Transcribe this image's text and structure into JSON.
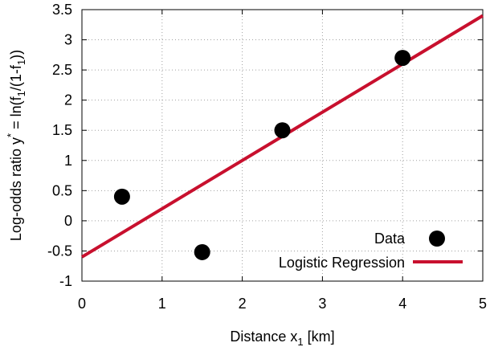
{
  "chart_data": {
    "type": "scatter",
    "title": "",
    "xlabel": "Distance x",
    "xlabel_sub": "1",
    "xlabel_tail": " [km]",
    "ylabel_parts": {
      "prefix": "Log-odds ratio y",
      "sup": "*",
      "mid1": " = ln(f",
      "sub1": "1",
      "mid2": "/(1-f",
      "sub2": "1",
      "suffix": "))"
    },
    "xlim": [
      0,
      5
    ],
    "ylim": [
      -1,
      3.5
    ],
    "xticks": [
      "0",
      "1",
      "2",
      "3",
      "4",
      "5"
    ],
    "yticks": [
      "-1",
      "-0.5",
      "0",
      "0.5",
      "1",
      "1.5",
      "2",
      "2.5",
      "3",
      "3.5"
    ],
    "grid": true,
    "legend_position": "bottom-right",
    "series": [
      {
        "name": "Data",
        "kind": "points",
        "color": "#000000",
        "x": [
          0.5,
          1.5,
          2.5,
          4.0
        ],
        "y": [
          0.4,
          -0.52,
          1.5,
          2.7
        ]
      },
      {
        "name": "Logistic Regression",
        "kind": "line",
        "color": "#c8102e",
        "x": [
          0,
          5
        ],
        "y": [
          -0.6,
          3.4
        ]
      }
    ]
  }
}
